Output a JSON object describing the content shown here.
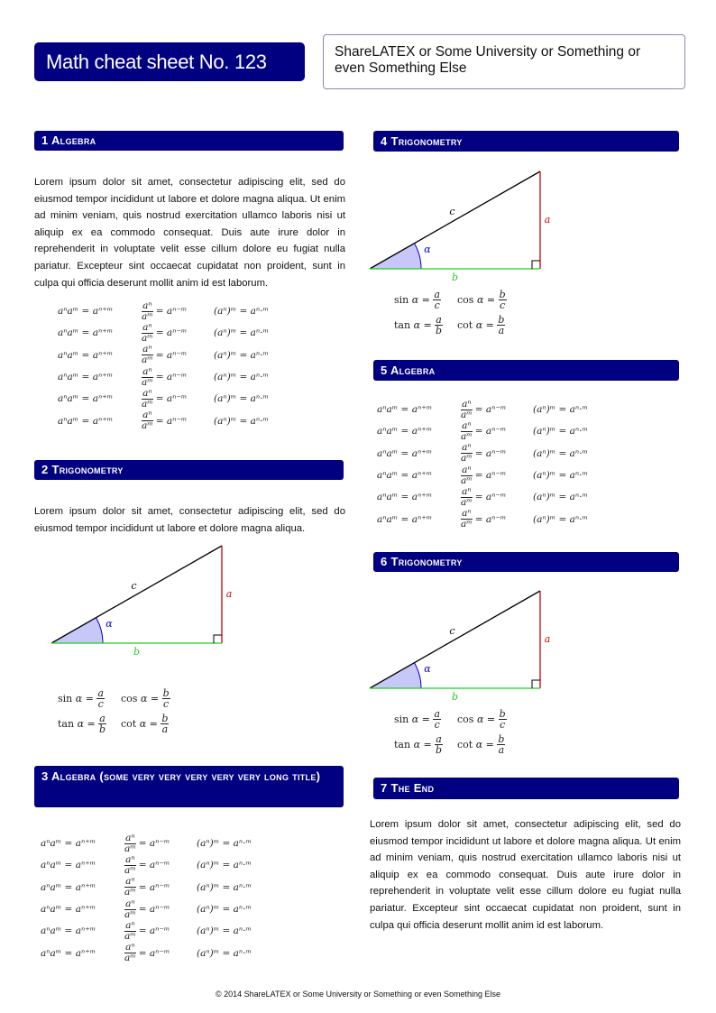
{
  "header": {
    "title": "Math cheat sheet No. 123",
    "institution": "ShareLATEX or Some University or Something or even Something Else"
  },
  "colors": {
    "header_bg": "#000080",
    "side_a": "#cc0000",
    "side_b": "#22cc22",
    "side_c": "#000000",
    "angle": "#0000cc",
    "angle_fill": "#c8c8f8"
  },
  "lorem_long": "Lorem ipsum dolor sit amet, consectetur adipiscing elit, sed do eiusmod tempor incididunt ut labore et dolore magna aliqua. Ut enim ad minim veniam, quis nostrud exercitation ullamco laboris nisi ut aliquip ex ea commodo consequat. Duis aute irure dolor in reprehenderit in voluptate velit esse cillum dolore eu fugiat nulla pariatur. Excepteur sint occaecat cupidatat non proident, sunt in culpa qui officia deserunt mollit anim id est laborum.",
  "lorem_short": "Lorem ipsum dolor sit amet, consectetur adipiscing elit, sed do eiusmod tempor incididunt ut labore et dolore magna aliqua.",
  "sections": [
    {
      "number": "1",
      "title": "Algebra"
    },
    {
      "number": "2",
      "title": "Trigonometry"
    },
    {
      "number": "3",
      "title": "Algebra (some very very very very very long title)"
    },
    {
      "number": "4",
      "title": "Trigonometry"
    },
    {
      "number": "5",
      "title": "Algebra"
    },
    {
      "number": "6",
      "title": "Trigonometry"
    },
    {
      "number": "7",
      "title": "The End"
    }
  ],
  "algebra_rows": 6,
  "algebra": {
    "product": "aⁿaᵐ = aⁿ⁺ᵐ",
    "quot_num": "aⁿ",
    "quot_den": "aᵐ",
    "quot_rhs": "= aⁿ⁻ᵐ",
    "power": "(aⁿ)ᵐ = aⁿ·ᵐ"
  },
  "triangle": {
    "a": "a",
    "b": "b",
    "c": "c",
    "alpha": "α"
  },
  "trig": [
    [
      {
        "fn": "sin",
        "var": "α",
        "num": "a",
        "den": "c"
      },
      {
        "fn": "cos",
        "var": "α",
        "num": "b",
        "den": "c"
      }
    ],
    [
      {
        "fn": "tan",
        "var": "α",
        "num": "a",
        "den": "b"
      },
      {
        "fn": "cot",
        "var": "α",
        "num": "b",
        "den": "a"
      }
    ]
  ],
  "footer": "© 2014  ShareLATEX or Some University or Something or even Something Else"
}
